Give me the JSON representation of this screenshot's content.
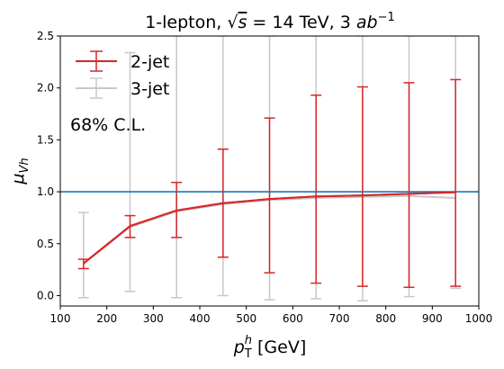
{
  "chart_data": {
    "type": "line",
    "title_parts": {
      "prefix": "1-lepton, ",
      "sqrt_radical": "√",
      "sqrt_arg": "s",
      "mid": " = 14 TeV, 3 ",
      "unit": "ab",
      "unit_exp": "−1"
    },
    "xlabel_parts": {
      "base": "p",
      "sub": "T",
      "sup": "h",
      "rest": " [GeV]"
    },
    "ylabel_parts": {
      "base": "μ",
      "sub": "Vh"
    },
    "xlim": [
      100,
      1000
    ],
    "ylim": [
      -0.1,
      2.5
    ],
    "x_ticks": [
      100,
      200,
      300,
      400,
      500,
      600,
      700,
      800,
      900,
      1000
    ],
    "x_tick_labels": [
      "100",
      "200",
      "300",
      "400",
      "500",
      "600",
      "700",
      "800",
      "900",
      "1000"
    ],
    "y_ticks": [
      0.0,
      0.5,
      1.0,
      1.5,
      2.0,
      2.5
    ],
    "y_tick_labels": [
      "0.0",
      "0.5",
      "1.0",
      "1.5",
      "2.0",
      "2.5"
    ],
    "reference_line": {
      "y": 1.0,
      "color": "#1f77b4"
    },
    "annotation": "68% C.L.",
    "legend_position": "upper-left",
    "series": [
      {
        "name": "3-jet",
        "color": "#c8c8c8",
        "x": [
          150,
          250,
          350,
          450,
          550,
          650,
          750,
          850,
          950
        ],
        "y": [
          0.31,
          0.66,
          0.81,
          0.88,
          0.92,
          0.94,
          0.95,
          0.96,
          0.94
        ],
        "y_low": [
          -0.02,
          0.04,
          -0.02,
          0.0,
          -0.04,
          -0.03,
          -0.05,
          -0.01,
          0.07
        ],
        "y_high": [
          0.8,
          2.34,
          2.5,
          2.5,
          2.5,
          2.5,
          2.5,
          2.5,
          2.5
        ]
      },
      {
        "name": "2-jet",
        "color": "#d62728",
        "x": [
          150,
          250,
          350,
          450,
          550,
          650,
          750,
          850,
          950
        ],
        "y": [
          0.31,
          0.67,
          0.82,
          0.89,
          0.93,
          0.955,
          0.965,
          0.98,
          0.995
        ],
        "y_low": [
          0.26,
          0.56,
          0.56,
          0.37,
          0.22,
          0.12,
          0.09,
          0.08,
          0.09
        ],
        "y_high": [
          0.35,
          0.77,
          1.09,
          1.41,
          1.71,
          1.93,
          2.01,
          2.05,
          2.08
        ]
      }
    ]
  }
}
